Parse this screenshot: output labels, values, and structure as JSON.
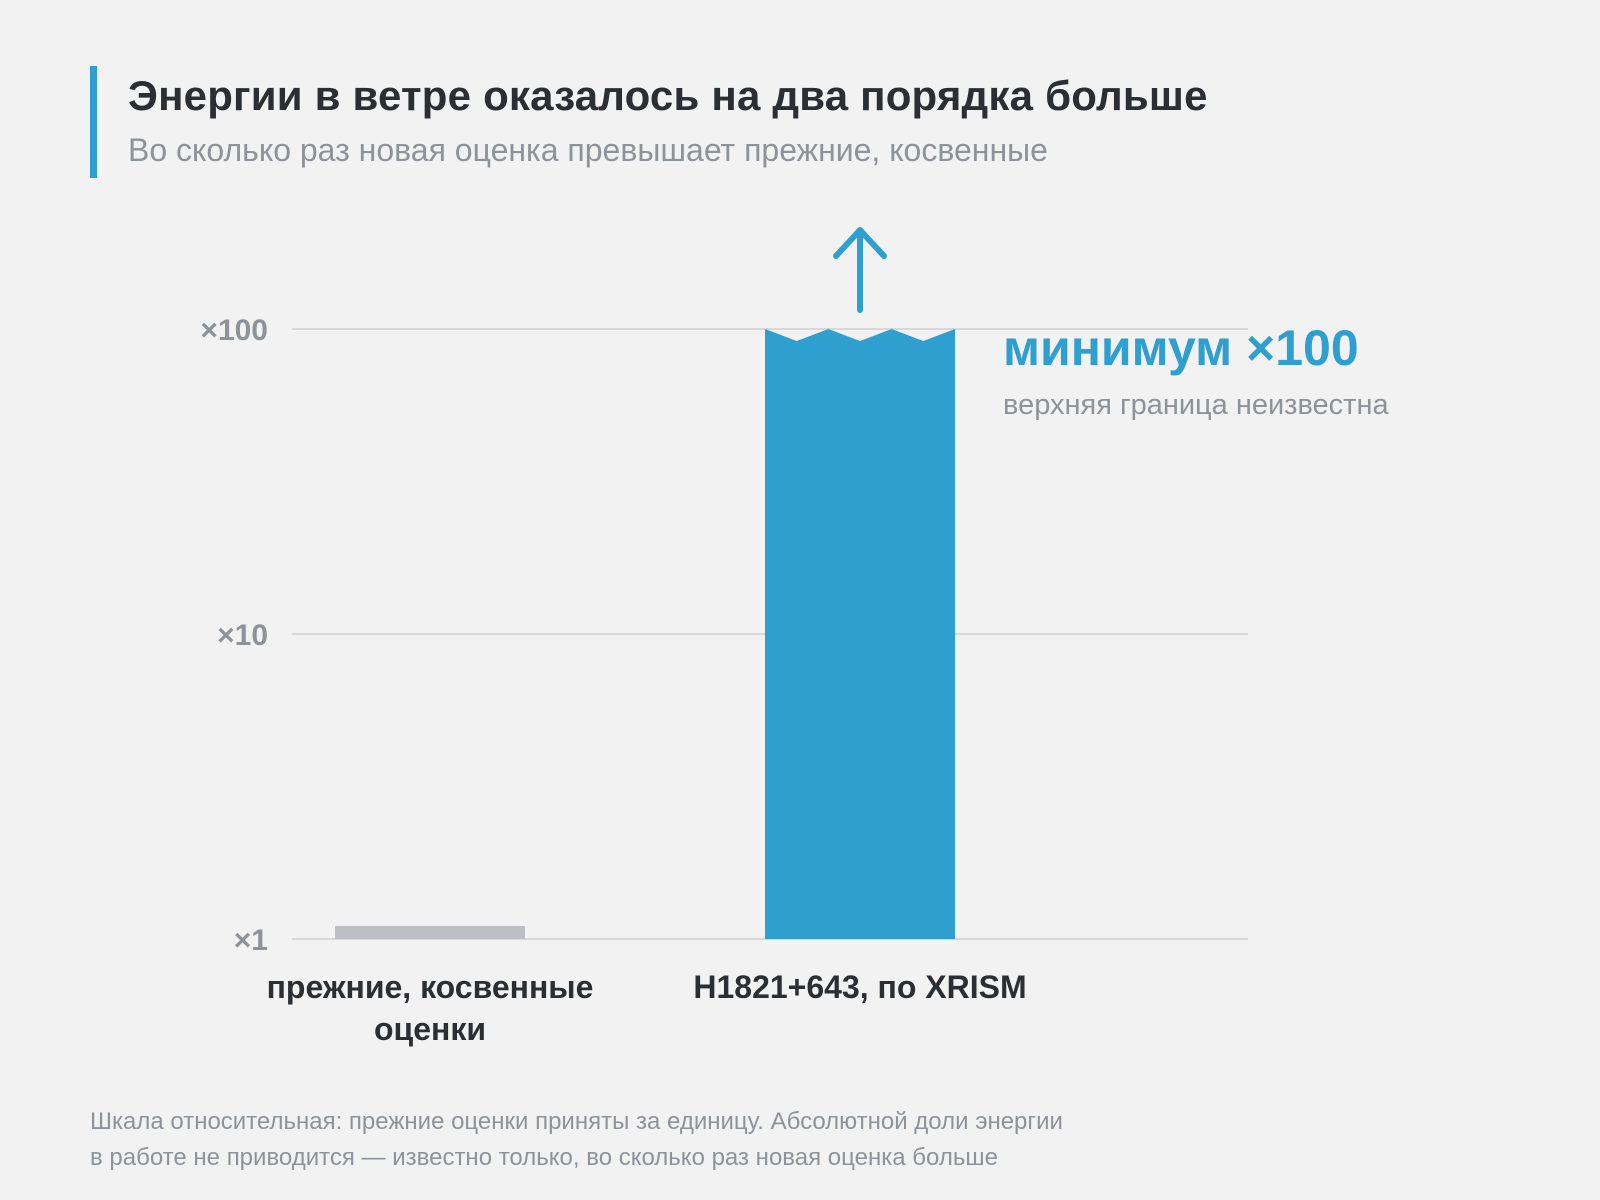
{
  "header": {
    "title": "Энергии в ветре оказалось на два порядка больше",
    "subtitle": "Во сколько раз новая оценка превышает прежние, косвенные"
  },
  "chart_data": {
    "type": "bar",
    "scale": "log",
    "ylim": [
      1,
      100
    ],
    "yticks": [
      {
        "value": 1,
        "label": "×1"
      },
      {
        "value": 10,
        "label": "×10"
      },
      {
        "value": 100,
        "label": "×100"
      }
    ],
    "categories": [
      {
        "label_lines": [
          "прежние, косвенные",
          "оценки"
        ],
        "value": 1,
        "color": "#bcbfc4"
      },
      {
        "label_lines": [
          "H1821+643, по XRISM"
        ],
        "value": 100,
        "color": "#2f9fd0",
        "lower_bound": true
      }
    ],
    "annotation": {
      "main": "минимум ×100",
      "sub": "верхняя граница неизвестна"
    },
    "grid": true
  },
  "footnote": {
    "lines": [
      "Шкала относительная: прежние оценки приняты за единицу. Абсолютной доли энергии",
      "в работе не приводится — известно только, во сколько раз новая оценка больше"
    ]
  }
}
